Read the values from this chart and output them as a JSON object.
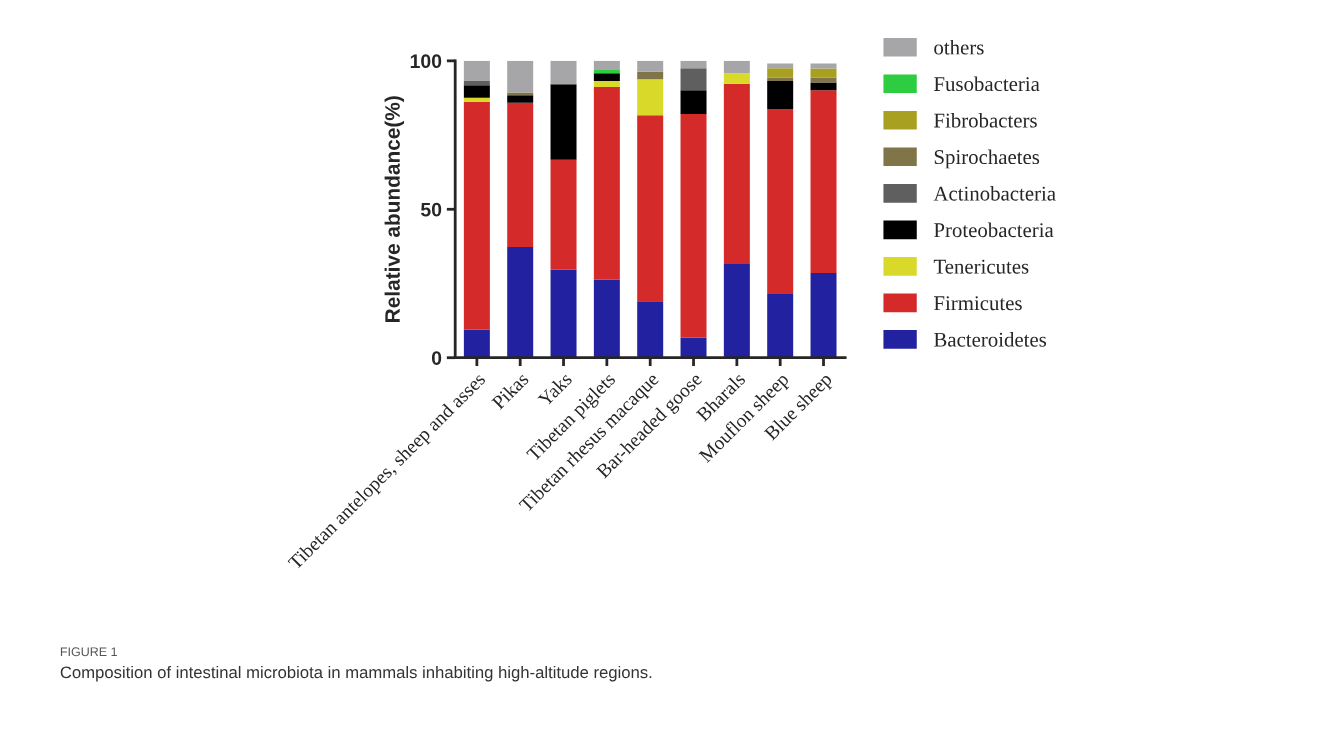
{
  "chart_data": {
    "type": "bar",
    "stacked": true,
    "ylabel": "Relative abundance(%)",
    "ylim": [
      0,
      100
    ],
    "yticks": [
      0,
      50,
      100
    ],
    "grid": false,
    "legend": "right",
    "categories": [
      "Tibetan antelopes, sheep and asses",
      "Pikas",
      "Yaks",
      "Tibetan piglets",
      "Tibetan rhesus macaque",
      "Bar-headed goose",
      "Bharals",
      "Mouflon sheep",
      "Blue sheep"
    ],
    "series": [
      {
        "name": "Bacteroidetes",
        "color": "#2222a0",
        "values": [
          9.5,
          37.3,
          29.7,
          26.3,
          19.0,
          6.8,
          31.6,
          21.5,
          28.5
        ]
      },
      {
        "name": "Firmicutes",
        "color": "#d42a2a",
        "values": [
          76.7,
          48.6,
          37.0,
          64.9,
          62.7,
          75.3,
          60.7,
          62.3,
          61.6
        ]
      },
      {
        "name": "Tenericutes",
        "color": "#d9d92a",
        "values": [
          1.4,
          0,
          0,
          2.0,
          12.1,
          0,
          3.5,
          0,
          0
        ]
      },
      {
        "name": "Proteobacteria",
        "color": "#000000",
        "values": [
          4.2,
          2.5,
          25.4,
          2.6,
          0,
          8.0,
          0,
          9.4,
          2.6
        ]
      },
      {
        "name": "Actinobacteria",
        "color": "#5f5f5f",
        "values": [
          1.6,
          0,
          0,
          0,
          0,
          7.4,
          0,
          0,
          0
        ]
      },
      {
        "name": "Spirochaetes",
        "color": "#7f7548",
        "values": [
          0,
          0.9,
          0,
          0,
          2.5,
          0,
          0,
          1.2,
          1.7
        ]
      },
      {
        "name": "Fibrobacters",
        "color": "#a8a020",
        "values": [
          0,
          0,
          0,
          0,
          0,
          0,
          0,
          3.1,
          3.0
        ]
      },
      {
        "name": "Fusobacteria",
        "color": "#2ecc40",
        "values": [
          0,
          0,
          0,
          1.4,
          0,
          0,
          0,
          0,
          0
        ]
      },
      {
        "name": "others",
        "color": "#a6a6a8",
        "values": [
          6.6,
          10.7,
          7.9,
          2.8,
          3.7,
          2.5,
          4.2,
          1.6,
          1.7
        ]
      }
    ],
    "annotations": [
      "FIGURE 1",
      "Composition of intestinal microbiota in mammals inhabiting high-altitude regions."
    ]
  }
}
